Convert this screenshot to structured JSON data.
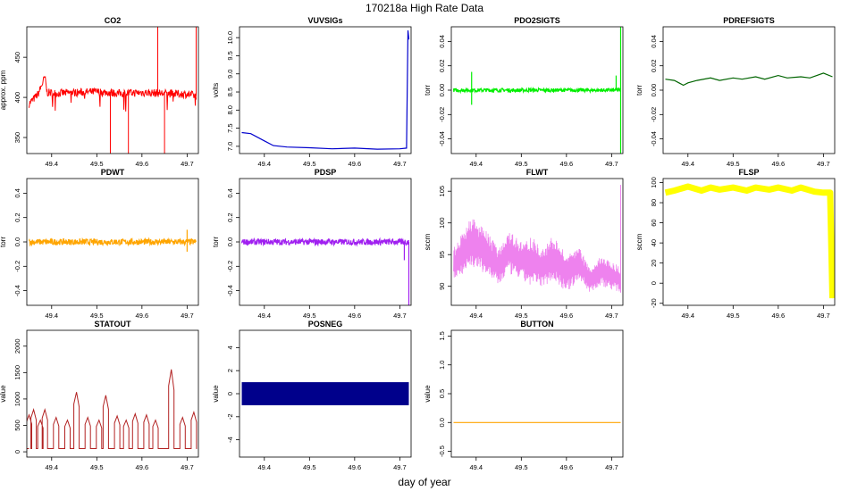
{
  "figure": {
    "title": "170218a   High Rate Data",
    "shared_xlabel": "day of year"
  },
  "chart_data": [
    {
      "type": "line",
      "title": "CO2",
      "ylabel": "approx. ppm",
      "color": "#ff0000",
      "style": "noisy-spiky",
      "xlim": [
        49.345,
        49.725
      ],
      "ylim": [
        330,
        488
      ],
      "xticks": [
        "49.4",
        "49.5",
        "49.6",
        "49.7"
      ],
      "yticks": [
        "350",
        "400",
        "450"
      ],
      "series": [
        {
          "x": [
            49.35,
            49.37,
            49.385,
            49.39,
            49.41,
            49.45,
            49.5,
            49.55,
            49.6,
            49.65,
            49.7,
            49.72
          ],
          "y": [
            392,
            404,
            425,
            406,
            405,
            406,
            407,
            405,
            406,
            405,
            404,
            402
          ]
        }
      ],
      "spikes": [
        {
          "x": 49.53,
          "y": 330
        },
        {
          "x": 49.57,
          "y": 330
        },
        {
          "x": 49.635,
          "y": 488
        },
        {
          "x": 49.65,
          "y": 330
        },
        {
          "x": 49.72,
          "y": 488
        }
      ]
    },
    {
      "type": "line",
      "title": "VUVSIGs",
      "ylabel": "volts",
      "color": "#0000cd",
      "style": "smooth",
      "xlim": [
        49.345,
        49.725
      ],
      "ylim": [
        6.8,
        10.3
      ],
      "xticks": [
        "49.4",
        "49.5",
        "49.6",
        "49.7"
      ],
      "yticks": [
        "7.0",
        "7.5",
        "8.0",
        "8.5",
        "9.0",
        "9.5",
        "10.0"
      ],
      "series": [
        {
          "x": [
            49.35,
            49.37,
            49.4,
            49.42,
            49.45,
            49.5,
            49.55,
            49.6,
            49.65,
            49.7,
            49.715,
            49.718,
            49.72
          ],
          "y": [
            7.38,
            7.35,
            7.15,
            7.02,
            6.98,
            6.96,
            6.93,
            6.95,
            6.92,
            6.93,
            6.95,
            10.2,
            9.95
          ]
        }
      ]
    },
    {
      "type": "line",
      "title": "PDO2SIGTS",
      "ylabel": "torr",
      "color": "#00ee00",
      "style": "noise-band",
      "xlim": [
        49.345,
        49.725
      ],
      "ylim": [
        -0.052,
        0.052
      ],
      "xticks": [
        "49.4",
        "49.5",
        "49.6",
        "49.7"
      ],
      "yticks": [
        "-0.04",
        "-0.02",
        "0.00",
        "0.02",
        "0.04"
      ],
      "series": [
        {
          "x": [
            49.35,
            49.72
          ],
          "y": [
            0.0,
            0.0
          ]
        }
      ],
      "band_halfwidth": 0.0015,
      "spikes": [
        {
          "x": 49.39,
          "y": 0.015
        },
        {
          "x": 49.39,
          "y": -0.012
        },
        {
          "x": 49.71,
          "y": 0.012
        },
        {
          "x": 49.72,
          "y": 0.052
        },
        {
          "x": 49.72,
          "y": -0.052
        }
      ]
    },
    {
      "type": "line",
      "title": "PDREFSIGTS",
      "ylabel": "torr",
      "color": "#006400",
      "style": "smooth",
      "xlim": [
        49.345,
        49.725
      ],
      "ylim": [
        -0.052,
        0.052
      ],
      "xticks": [
        "49.4",
        "49.5",
        "49.6",
        "49.7"
      ],
      "yticks": [
        "-0.04",
        "-0.02",
        "0.00",
        "0.02",
        "0.04"
      ],
      "series": [
        {
          "x": [
            49.35,
            49.37,
            49.38,
            49.39,
            49.4,
            49.42,
            49.45,
            49.47,
            49.5,
            49.52,
            49.55,
            49.57,
            49.6,
            49.62,
            49.65,
            49.67,
            49.7,
            49.72
          ],
          "y": [
            0.009,
            0.008,
            0.006,
            0.004,
            0.006,
            0.008,
            0.01,
            0.008,
            0.01,
            0.009,
            0.011,
            0.009,
            0.012,
            0.01,
            0.011,
            0.01,
            0.014,
            0.011
          ]
        }
      ]
    },
    {
      "type": "line",
      "title": "PDWT",
      "ylabel": "torr",
      "color": "#ffa500",
      "style": "noise-band",
      "xlim": [
        49.345,
        49.725
      ],
      "ylim": [
        -0.52,
        0.52
      ],
      "xticks": [
        "49.4",
        "49.5",
        "49.6",
        "49.7"
      ],
      "yticks": [
        "-0.4",
        "-0.2",
        "0.0",
        "0.2",
        "0.4"
      ],
      "series": [
        {
          "x": [
            49.35,
            49.72
          ],
          "y": [
            0.0,
            0.0
          ]
        }
      ],
      "band_halfwidth": 0.025,
      "spikes": [
        {
          "x": 49.7,
          "y": 0.1
        },
        {
          "x": 49.7,
          "y": -0.08
        }
      ]
    },
    {
      "type": "line",
      "title": "PDSP",
      "ylabel": "torr",
      "color": "#a020f0",
      "style": "noise-band",
      "xlim": [
        49.345,
        49.725
      ],
      "ylim": [
        -0.52,
        0.52
      ],
      "xticks": [
        "49.4",
        "49.5",
        "49.6",
        "49.7"
      ],
      "yticks": [
        "-0.4",
        "-0.2",
        "0.0",
        "0.2",
        "0.4"
      ],
      "series": [
        {
          "x": [
            49.35,
            49.72
          ],
          "y": [
            0.0,
            0.0
          ]
        }
      ],
      "band_halfwidth": 0.025,
      "spikes": [
        {
          "x": 49.71,
          "y": -0.15
        },
        {
          "x": 49.72,
          "y": -0.52
        }
      ]
    },
    {
      "type": "line",
      "title": "FLWT",
      "ylabel": "sccm",
      "color": "#ee82ee",
      "style": "envelope",
      "xlim": [
        49.345,
        49.725
      ],
      "ylim": [
        87,
        107
      ],
      "xticks": [
        "49.4",
        "49.5",
        "49.6",
        "49.7"
      ],
      "yticks": [
        "90",
        "95",
        "100",
        "105"
      ],
      "series": [
        {
          "name": "upper",
          "x": [
            49.35,
            49.39,
            49.42,
            49.45,
            49.47,
            49.5,
            49.52,
            49.55,
            49.57,
            49.6,
            49.63,
            49.65,
            49.68,
            49.72
          ],
          "y": [
            96,
            101,
            99,
            96,
            99,
            97,
            98,
            96,
            98,
            95,
            96,
            93,
            95,
            93
          ]
        },
        {
          "name": "lower",
          "x": [
            49.35,
            49.39,
            49.42,
            49.45,
            49.47,
            49.5,
            49.52,
            49.55,
            49.57,
            49.6,
            49.63,
            49.65,
            49.68,
            49.72
          ],
          "y": [
            91,
            93,
            92,
            90,
            92,
            91,
            90,
            90,
            91,
            89,
            91,
            89,
            90,
            89
          ]
        }
      ],
      "spikes": [
        {
          "x": 49.72,
          "y": 106
        }
      ]
    },
    {
      "type": "line",
      "title": "FLSP",
      "ylabel": "sccm",
      "color": "#ffff00",
      "style": "thick",
      "xlim": [
        49.345,
        49.725
      ],
      "ylim": [
        -22,
        104
      ],
      "xticks": [
        "49.4",
        "49.5",
        "49.6",
        "49.7"
      ],
      "yticks": [
        "-20",
        "0",
        "20",
        "40",
        "60",
        "80",
        "100"
      ],
      "series": [
        {
          "x": [
            49.35,
            49.37,
            49.4,
            49.43,
            49.45,
            49.47,
            49.5,
            49.53,
            49.55,
            49.58,
            49.6,
            49.63,
            49.65,
            49.68,
            49.7,
            49.715,
            49.72
          ],
          "y": [
            90,
            92,
            96,
            92,
            95,
            93,
            95,
            92,
            95,
            93,
            95,
            92,
            95,
            91,
            90,
            90,
            -15
          ]
        }
      ]
    },
    {
      "type": "line",
      "title": "STATOUT",
      "ylabel": "value",
      "color": "#b22222",
      "style": "step-pulses",
      "xlim": [
        49.345,
        49.725
      ],
      "ylim": [
        -100,
        2300
      ],
      "xticks": [
        "49.4",
        "49.5",
        "49.6",
        "49.7"
      ],
      "yticks": [
        "0",
        "500",
        "1000",
        "1500",
        "2000"
      ],
      "baseline": 60,
      "pulses": [
        {
          "x": 49.35,
          "y": 700
        },
        {
          "x": 49.36,
          "y": 800
        },
        {
          "x": 49.375,
          "y": 600
        },
        {
          "x": 49.385,
          "y": 800
        },
        {
          "x": 49.41,
          "y": 650
        },
        {
          "x": 49.435,
          "y": 600
        },
        {
          "x": 49.455,
          "y": 1130
        },
        {
          "x": 49.48,
          "y": 650
        },
        {
          "x": 49.505,
          "y": 600
        },
        {
          "x": 49.52,
          "y": 1070
        },
        {
          "x": 49.545,
          "y": 680
        },
        {
          "x": 49.565,
          "y": 600
        },
        {
          "x": 49.585,
          "y": 720
        },
        {
          "x": 49.61,
          "y": 700
        },
        {
          "x": 49.63,
          "y": 600
        },
        {
          "x": 49.665,
          "y": 1560
        },
        {
          "x": 49.69,
          "y": 650
        },
        {
          "x": 49.715,
          "y": 750
        }
      ]
    },
    {
      "type": "area",
      "title": "POSNEG",
      "ylabel": "value",
      "color": "#00008b",
      "style": "filled-band",
      "xlim": [
        49.345,
        49.725
      ],
      "ylim": [
        -5.5,
        5.5
      ],
      "xticks": [
        "49.4",
        "49.5",
        "49.6",
        "49.7"
      ],
      "yticks": [
        "-4",
        "-2",
        "0",
        "2",
        "4"
      ],
      "series": [
        {
          "x": [
            49.35,
            49.72
          ],
          "y_top": [
            1,
            1
          ],
          "y_bottom": [
            -1,
            -1
          ]
        }
      ]
    },
    {
      "type": "line",
      "title": "BUTTON",
      "ylabel": "value",
      "color": "#ffa500",
      "style": "smooth",
      "xlim": [
        49.345,
        49.725
      ],
      "ylim": [
        -0.6,
        1.6
      ],
      "xticks": [
        "49.4",
        "49.5",
        "49.6",
        "49.7"
      ],
      "yticks": [
        "-0.5",
        "0.0",
        "0.5",
        "1.0",
        "1.5"
      ],
      "series": [
        {
          "x": [
            49.35,
            49.72
          ],
          "y": [
            0,
            0
          ]
        }
      ]
    }
  ]
}
